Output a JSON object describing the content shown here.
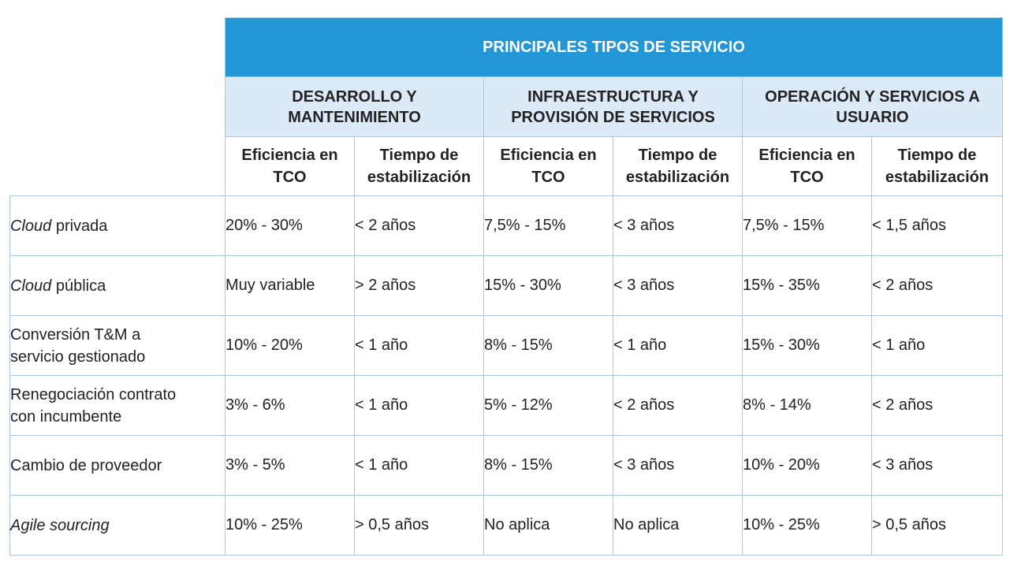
{
  "table": {
    "title": "PRINCIPALES TIPOS DE SERVICIO",
    "groups": [
      {
        "line1": "DESARROLLO Y",
        "line2": "MANTENIMIENTO"
      },
      {
        "line1": "INFRAESTRUCTURA Y",
        "line2": "PROVISIÓN DE SERVICIOS"
      },
      {
        "line1": "OPERACIÓN Y SERVICIOS A",
        "line2": "USUARIO"
      }
    ],
    "metrics": {
      "efficiency": {
        "line1": "Eficiencia en",
        "line2": "TCO"
      },
      "stabilization": {
        "line1": "Tiempo de",
        "line2": "estabilización"
      }
    },
    "rows": [
      {
        "label_italic": "Cloud",
        "label_rest": " privada",
        "values": [
          "20% - 30%",
          "< 2 años",
          "7,5% - 15%",
          "< 3 años",
          "7,5% - 15%",
          "< 1,5 años"
        ]
      },
      {
        "label_italic": "Cloud",
        "label_rest": " pública",
        "values": [
          "Muy variable",
          "> 2 años",
          "15% - 30%",
          "< 3 años",
          "15% - 35%",
          "< 2 años"
        ]
      },
      {
        "label_line1": "Conversión T&M a",
        "label_line2": "servicio gestionado",
        "values": [
          "10% - 20%",
          "< 1 año",
          "8% - 15%",
          "< 1 año",
          "15% - 30%",
          "< 1 año"
        ]
      },
      {
        "label_line1": "Renegociación contrato",
        "label_line2": "con incumbente",
        "values": [
          "3% - 6%",
          "< 1 año",
          "5% - 12%",
          "< 2 años",
          "8% - 14%",
          "< 2 años"
        ]
      },
      {
        "label": "Cambio de proveedor",
        "values": [
          "3% - 5%",
          "< 1 año",
          "8% - 15%",
          "< 3 años",
          "10% - 20%",
          "< 3 años"
        ]
      },
      {
        "label_italic": "Agile sourcing",
        "values": [
          "10% - 25%",
          "> 0,5 años",
          "No aplica",
          "No aplica",
          "10% - 25%",
          "> 0,5 años"
        ]
      }
    ]
  }
}
